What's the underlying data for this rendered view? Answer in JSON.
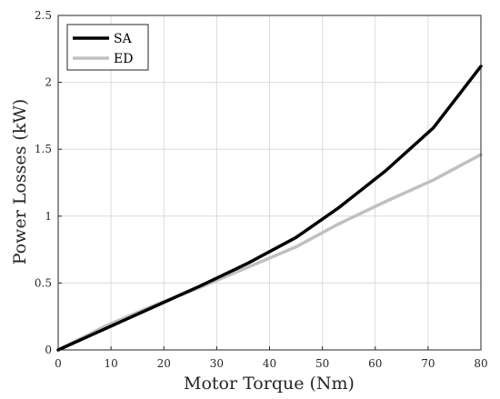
{
  "chart_data": {
    "type": "line",
    "xlabel": "Motor Torque (Nm)",
    "ylabel": "Power Losses (kW)",
    "xlim": [
      0,
      80
    ],
    "ylim": [
      0,
      2.5
    ],
    "grid": true,
    "legend_position": "top-left",
    "x_ticks": [
      "0",
      "10",
      "20",
      "30",
      "40",
      "50",
      "60",
      "70",
      "80"
    ],
    "y_ticks": [
      "0",
      "0.5",
      "1",
      "1.5",
      "2",
      "2.5"
    ],
    "series": [
      {
        "name": "SA",
        "color": "#000000",
        "x": [
          0,
          9,
          18,
          27,
          36,
          45,
          53,
          62,
          71,
          80
        ],
        "y": [
          0,
          0.16,
          0.32,
          0.48,
          0.65,
          0.84,
          1.06,
          1.34,
          1.66,
          2.12
        ]
      },
      {
        "name": "ED",
        "color": "#c0c0c0",
        "x": [
          0,
          9,
          18,
          27,
          36,
          45,
          53,
          62,
          71,
          80
        ],
        "y": [
          0,
          0.18,
          0.33,
          0.47,
          0.62,
          0.77,
          0.94,
          1.11,
          1.27,
          1.46
        ]
      }
    ]
  }
}
